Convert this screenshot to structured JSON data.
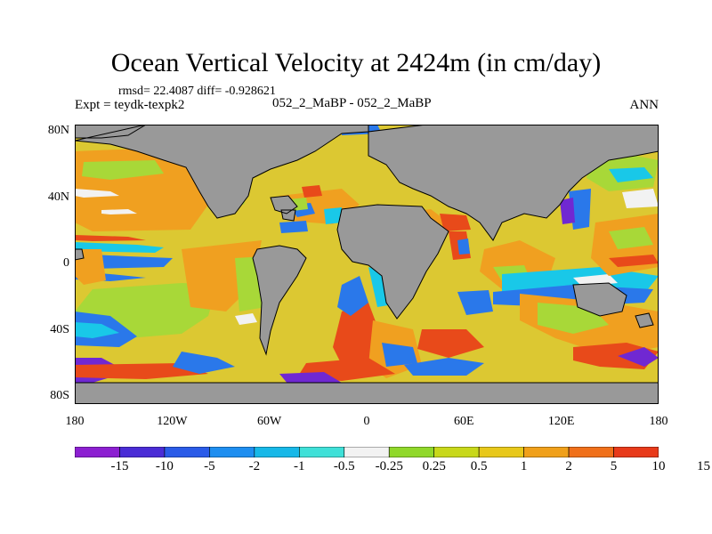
{
  "title": "Ocean Vertical Velocity at 2424m (in cm/day)",
  "stats_text": "rmsd= 22.4087 diff= -0.928621",
  "experiment_text": "Expt = teydk-texpk2",
  "comparison_text": "052_2_MaBP - 052_2_MaBP",
  "season_text": "ANN",
  "y_axis_labels": [
    "80N",
    "40N",
    "0",
    "40S",
    "80S"
  ],
  "x_axis_labels": [
    "180",
    "120W",
    "60W",
    "0",
    "60E",
    "120E",
    "180"
  ],
  "colorbar": {
    "colors": [
      "#8c1fd1",
      "#4a2cd6",
      "#2a5be8",
      "#1e8ef0",
      "#17b8e8",
      "#3fe0d8",
      "#f2f2f2",
      "#90d82a",
      "#c8d81a",
      "#e8c81a",
      "#f0a01a",
      "#f0701a",
      "#e83a1a"
    ],
    "labels": [
      "-15",
      "-10",
      "-5",
      "-2",
      "-1",
      "-0.5",
      "-0.25",
      "0.25",
      "0.5",
      "1",
      "2",
      "5",
      "10",
      "15"
    ]
  },
  "map_colors": {
    "land": "#999999",
    "ocean_base": "#dcc832",
    "orange": "#f0a020",
    "red": "#e84a1a",
    "green": "#a8d838",
    "blue": "#2a78ea",
    "cyan": "#19c8e8",
    "purple": "#7028d2",
    "white": "#f2f2f2"
  }
}
